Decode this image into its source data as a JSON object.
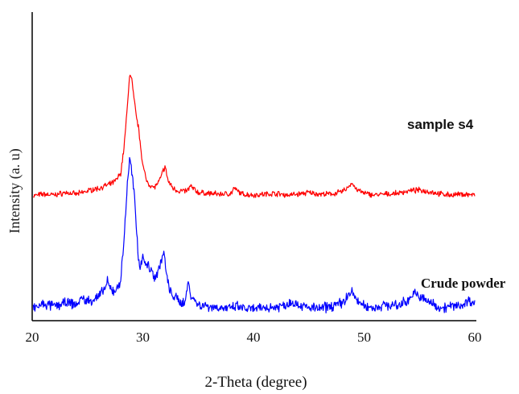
{
  "chart_data": {
    "type": "line",
    "xlabel": "2-Theta (degree)",
    "ylabel": "Intensity (a. u)",
    "xlim": [
      20,
      60
    ],
    "x_ticks": [
      20,
      30,
      40,
      50,
      60
    ],
    "y_ticks": [],
    "grid": false,
    "legend": "none",
    "series": [
      {
        "name": "sample s4",
        "color": "#ff0000",
        "offset": 145,
        "x": [
          20.1,
          21,
          22,
          23,
          24,
          25,
          25.5,
          26,
          26.5,
          27,
          27.5,
          28,
          28.3,
          28.6,
          28.8,
          29.0,
          29.2,
          29.4,
          29.6,
          29.8,
          30.0,
          30.3,
          30.6,
          31.0,
          31.5,
          31.8,
          32.0,
          32.3,
          32.7,
          33.2,
          34.0,
          34.3,
          35.0,
          36,
          37,
          38,
          38.2,
          39,
          40,
          41,
          42,
          43,
          44,
          45,
          46,
          47,
          48,
          48.5,
          48.9,
          49.3,
          50,
          51,
          52,
          53,
          54,
          55,
          56,
          57,
          58,
          59,
          60
        ],
        "values": [
          0,
          2,
          1,
          4,
          2,
          6,
          8,
          9,
          12,
          14,
          18,
          28,
          60,
          110,
          150,
          145,
          120,
          100,
          85,
          62,
          38,
          20,
          14,
          10,
          18,
          30,
          36,
          18,
          10,
          6,
          6,
          12,
          4,
          3,
          2,
          3,
          9,
          2,
          1,
          2,
          3,
          1,
          2,
          4,
          2,
          2,
          5,
          10,
          16,
          8,
          3,
          1,
          2,
          3,
          6,
          7,
          5,
          2,
          1,
          2,
          1
        ]
      },
      {
        "name": "Crude powder",
        "color": "#0000ff",
        "offset": 0,
        "x": [
          20.1,
          21,
          22,
          23,
          24,
          24.5,
          25,
          25.5,
          26,
          26.5,
          26.8,
          27,
          27.5,
          28,
          28.3,
          28.6,
          28.8,
          29.0,
          29.2,
          29.4,
          29.6,
          29.8,
          30.0,
          30.2,
          30.5,
          30.8,
          31.0,
          31.3,
          31.6,
          31.9,
          32.1,
          32.4,
          32.8,
          33.3,
          33.8,
          34.1,
          34.4,
          35,
          36,
          37,
          38,
          38.5,
          39,
          40,
          41,
          42,
          43,
          43.5,
          44,
          45,
          46,
          47,
          48,
          48.5,
          48.9,
          49.3,
          50,
          51,
          52,
          53,
          54,
          54.5,
          55,
          56,
          57,
          58,
          59,
          59.5,
          60
        ],
        "values": [
          5,
          10,
          8,
          12,
          10,
          18,
          14,
          16,
          20,
          28,
          38,
          30,
          26,
          40,
          90,
          160,
          190,
          175,
          150,
          110,
          70,
          55,
          75,
          60,
          58,
          52,
          45,
          48,
          62,
          75,
          50,
          28,
          20,
          14,
          12,
          38,
          20,
          10,
          8,
          6,
          5,
          8,
          5,
          4,
          6,
          7,
          10,
          14,
          10,
          6,
          5,
          8,
          12,
          20,
          26,
          16,
          8,
          6,
          10,
          8,
          16,
          24,
          20,
          12,
          6,
          8,
          10,
          16,
          10
        ]
      }
    ],
    "annotations": [
      "sample s4",
      "Crude powder"
    ]
  }
}
